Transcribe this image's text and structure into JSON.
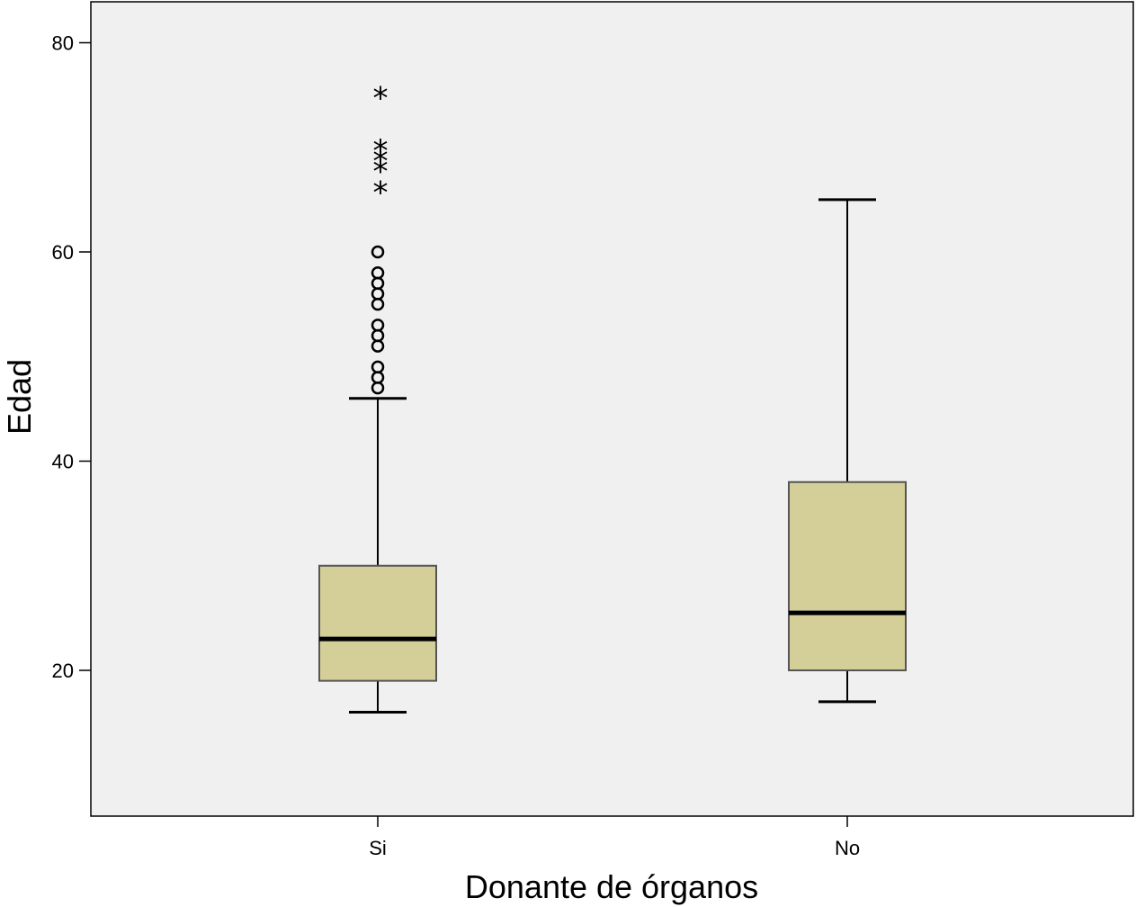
{
  "chart_data": {
    "type": "boxplot",
    "title": "",
    "xlabel": "Donante de órganos",
    "ylabel": "Edad",
    "ylim": [
      6,
      84
    ],
    "yticks": [
      "20",
      "40",
      "60",
      "80"
    ],
    "grid": false,
    "legend": "none",
    "colors": {
      "plot_background": "#f0f0f0",
      "box_fill": "#d4cf98",
      "line": "#000000"
    },
    "categories": [
      "Si",
      "No"
    ],
    "boxes": [
      {
        "category": "Si",
        "whisker_low": 16,
        "q1": 19,
        "median": 23,
        "q3": 30,
        "whisker_high": 46,
        "outliers": [
          47,
          48,
          49,
          51,
          52,
          53,
          55,
          56,
          57,
          58,
          60
        ],
        "extremes": [
          66,
          68,
          69,
          70,
          75
        ]
      },
      {
        "category": "No",
        "whisker_low": 17,
        "q1": 20,
        "median": 25.5,
        "q3": 38,
        "whisker_high": 65,
        "outliers": [],
        "extremes": []
      }
    ]
  }
}
